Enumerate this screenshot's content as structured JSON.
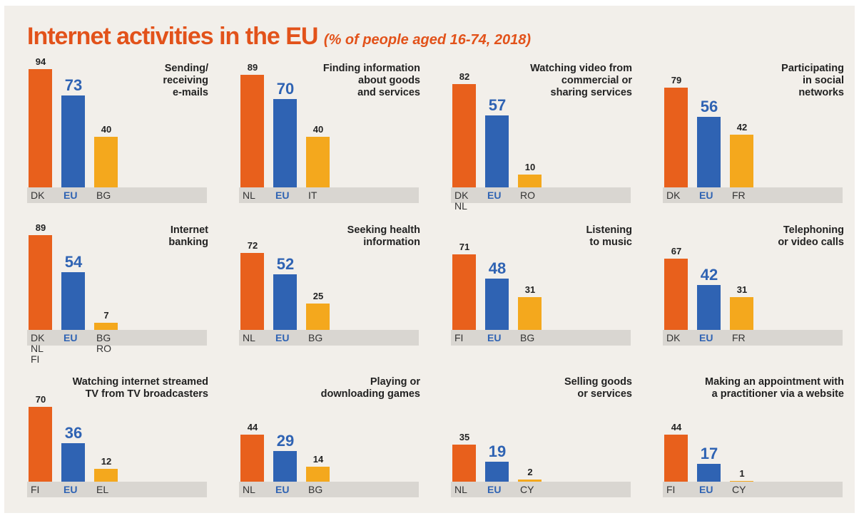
{
  "title": "Internet activities in the EU",
  "subtitle": "(% of people aged 16-74, 2018)",
  "chart_data": [
    {
      "type": "bar",
      "title": "Sending/\nreceiving\ne-mails",
      "categories": [
        "DK",
        "EU",
        "BG"
      ],
      "values": [
        94,
        73,
        40
      ],
      "colors": [
        "#e8601c",
        "#2f63b3",
        "#f4a81d"
      ],
      "ylim": [
        0,
        100
      ]
    },
    {
      "type": "bar",
      "title": "Finding information\nabout goods\nand services",
      "categories": [
        "NL",
        "EU",
        "IT"
      ],
      "values": [
        89,
        70,
        40
      ],
      "colors": [
        "#e8601c",
        "#2f63b3",
        "#f4a81d"
      ],
      "ylim": [
        0,
        100
      ]
    },
    {
      "type": "bar",
      "title": "Watching video from\ncommercial or\nsharing services",
      "categories": [
        "DK\nNL",
        "EU",
        "RO"
      ],
      "values": [
        82,
        57,
        10
      ],
      "colors": [
        "#e8601c",
        "#2f63b3",
        "#f4a81d"
      ],
      "ylim": [
        0,
        100
      ]
    },
    {
      "type": "bar",
      "title": "Participating\nin social\nnetworks",
      "categories": [
        "DK",
        "EU",
        "FR"
      ],
      "values": [
        79,
        56,
        42
      ],
      "colors": [
        "#e8601c",
        "#2f63b3",
        "#f4a81d"
      ],
      "ylim": [
        0,
        100
      ]
    },
    {
      "type": "bar",
      "title": "Internet\nbanking",
      "categories": [
        "DK\nNL\nFI",
        "EU",
        "BG\nRO"
      ],
      "values": [
        89,
        54,
        7
      ],
      "colors": [
        "#e8601c",
        "#2f63b3",
        "#f4a81d"
      ],
      "ylim": [
        0,
        100
      ]
    },
    {
      "type": "bar",
      "title": "Seeking health\ninformation",
      "categories": [
        "NL",
        "EU",
        "BG"
      ],
      "values": [
        72,
        52,
        25
      ],
      "colors": [
        "#e8601c",
        "#2f63b3",
        "#f4a81d"
      ],
      "ylim": [
        0,
        100
      ]
    },
    {
      "type": "bar",
      "title": "Listening\nto music",
      "categories": [
        "FI",
        "EU",
        "BG"
      ],
      "values": [
        71,
        48,
        31
      ],
      "colors": [
        "#e8601c",
        "#2f63b3",
        "#f4a81d"
      ],
      "ylim": [
        0,
        100
      ]
    },
    {
      "type": "bar",
      "title": "Telephoning\nor video calls",
      "categories": [
        "DK",
        "EU",
        "FR"
      ],
      "values": [
        67,
        42,
        31
      ],
      "colors": [
        "#e8601c",
        "#2f63b3",
        "#f4a81d"
      ],
      "ylim": [
        0,
        100
      ]
    },
    {
      "type": "bar",
      "title": "Watching internet streamed\nTV from TV broadcasters",
      "categories": [
        "FI",
        "EU",
        "EL"
      ],
      "values": [
        70,
        36,
        12
      ],
      "colors": [
        "#e8601c",
        "#2f63b3",
        "#f4a81d"
      ],
      "ylim": [
        0,
        100
      ]
    },
    {
      "type": "bar",
      "title": "Playing or\ndownloading games",
      "categories": [
        "NL",
        "EU",
        "BG"
      ],
      "values": [
        44,
        29,
        14
      ],
      "colors": [
        "#e8601c",
        "#2f63b3",
        "#f4a81d"
      ],
      "ylim": [
        0,
        100
      ]
    },
    {
      "type": "bar",
      "title": "Selling goods\nor services",
      "categories": [
        "NL",
        "EU",
        "CY"
      ],
      "values": [
        35,
        19,
        2
      ],
      "colors": [
        "#e8601c",
        "#2f63b3",
        "#f4a81d"
      ],
      "ylim": [
        0,
        100
      ]
    },
    {
      "type": "bar",
      "title": "Making an appointment with\na practitioner via a website",
      "categories": [
        "FI",
        "EU",
        "CY"
      ],
      "values": [
        44,
        17,
        1
      ],
      "colors": [
        "#e8601c",
        "#2f63b3",
        "#f4a81d"
      ],
      "ylim": [
        0,
        100
      ]
    }
  ]
}
